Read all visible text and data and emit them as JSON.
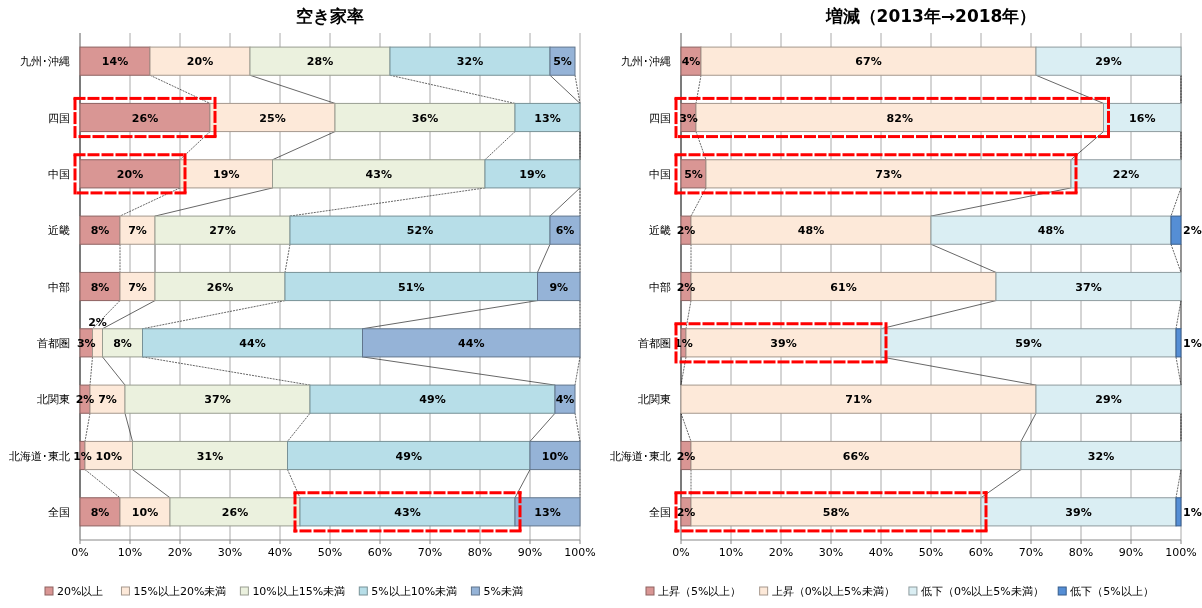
{
  "chart_data": [
    {
      "type": "bar",
      "orientation": "horizontal",
      "stacked": true,
      "title": "空き家率",
      "categories": [
        "九州･沖縄",
        "四国",
        "中国",
        "近畿",
        "中部",
        "首都圏",
        "北関東",
        "北海道･東北",
        "全国"
      ],
      "series": [
        {
          "name": "20%以上",
          "color": "#d99694",
          "values": [
            14,
            26,
            20,
            8,
            8,
            2.5,
            2,
            1,
            8
          ],
          "value_labels": [
            "14%",
            "26%",
            "20%",
            "8%",
            "8%",
            "3%",
            "2%",
            "1%",
            "8%"
          ]
        },
        {
          "name": "15%以上20%未満",
          "color": "#fde9d9",
          "values": [
            20,
            25,
            18.5,
            7,
            7,
            2,
            7,
            9.5,
            10
          ],
          "value_labels": [
            "20%",
            "25%",
            "19%",
            "7%",
            "7%",
            "2%",
            "7%",
            "10%",
            "10%"
          ]
        },
        {
          "name": "10%以上15%未満",
          "color": "#ebf1de",
          "values": [
            28,
            36,
            42.5,
            27,
            26,
            8,
            37,
            31,
            26
          ],
          "value_labels": [
            "28%",
            "36%",
            "43%",
            "27%",
            "26%",
            "8%",
            "37%",
            "31%",
            "26%"
          ]
        },
        {
          "name": "5%以上10%未満",
          "color": "#b7dee8",
          "values": [
            32,
            13,
            19,
            52,
            50.5,
            44,
            49,
            48.5,
            43
          ],
          "value_labels": [
            "32%",
            "13%",
            "19%",
            "52%",
            "51%",
            "44%",
            "49%",
            "49%",
            "43%"
          ]
        },
        {
          "name": "5%未満",
          "color": "#95b3d7",
          "values": [
            5,
            null,
            null,
            6,
            8.5,
            43.5,
            4,
            10,
            13
          ],
          "value_labels": [
            "5%",
            null,
            null,
            "6%",
            "9%",
            "44%",
            "4%",
            "10%",
            "13%"
          ]
        }
      ],
      "xlim": [
        0,
        100
      ],
      "xticks": [
        {
          "value": 0,
          "label": "0%"
        },
        {
          "value": 10,
          "label": "10%"
        },
        {
          "value": 20,
          "label": "20%"
        },
        {
          "value": 30,
          "label": "30%"
        },
        {
          "value": 40,
          "label": "40%"
        },
        {
          "value": 50,
          "label": "50%"
        },
        {
          "value": 60,
          "label": "60%"
        },
        {
          "value": 70,
          "label": "70%"
        },
        {
          "value": 80,
          "label": "80%"
        },
        {
          "value": 90,
          "label": "90%"
        },
        {
          "value": 100,
          "label": "100%"
        }
      ],
      "grid": "x",
      "legend": "bottom"
    },
    {
      "type": "bar",
      "orientation": "horizontal",
      "stacked": true,
      "title": "増減（2013年→2018年）",
      "categories": [
        "九州･沖縄",
        "四国",
        "中国",
        "近畿",
        "中部",
        "首都圏",
        "北関東",
        "北海道･東北",
        "全国"
      ],
      "series": [
        {
          "name": "上昇（5%以上）",
          "color": "#d99694",
          "values": [
            4,
            3,
            5,
            2,
            2,
            1,
            null,
            2,
            2
          ],
          "value_labels": [
            "4%",
            "3%",
            "5%",
            "2%",
            "2%",
            "1%",
            null,
            "2%",
            "2%"
          ]
        },
        {
          "name": "上昇（0%以上5%未満）",
          "color": "#fde9d9",
          "values": [
            67,
            81.5,
            73,
            48,
            61,
            39,
            71,
            66,
            58
          ],
          "value_labels": [
            "67%",
            "82%",
            "73%",
            "48%",
            "61%",
            "39%",
            "71%",
            "66%",
            "58%"
          ]
        },
        {
          "name": "低下（0%以上5%未満）",
          "color": "#daeef3",
          "values": [
            29,
            15.5,
            22,
            48,
            37,
            59,
            29,
            32,
            39
          ],
          "value_labels": [
            "29%",
            "16%",
            "22%",
            "48%",
            "37%",
            "59%",
            "29%",
            "32%",
            "39%"
          ]
        },
        {
          "name": "低下（5%以上）",
          "color": "#558ed5",
          "values": [
            null,
            null,
            null,
            2,
            null,
            1,
            null,
            null,
            1
          ],
          "value_labels": [
            null,
            null,
            null,
            "2%",
            null,
            "1%",
            null,
            null,
            "1%"
          ]
        }
      ],
      "xlim": [
        0,
        100
      ],
      "xticks": [
        {
          "value": 0,
          "label": "0%"
        },
        {
          "value": 10,
          "label": "10%"
        },
        {
          "value": 20,
          "label": "20%"
        },
        {
          "value": 30,
          "label": "30%"
        },
        {
          "value": 40,
          "label": "40%"
        },
        {
          "value": 50,
          "label": "50%"
        },
        {
          "value": 60,
          "label": "60%"
        },
        {
          "value": 70,
          "label": "70%"
        },
        {
          "value": 80,
          "label": "80%"
        },
        {
          "value": 90,
          "label": "90%"
        },
        {
          "value": 100,
          "label": "100%"
        }
      ],
      "grid": "x",
      "legend": "bottom"
    }
  ]
}
